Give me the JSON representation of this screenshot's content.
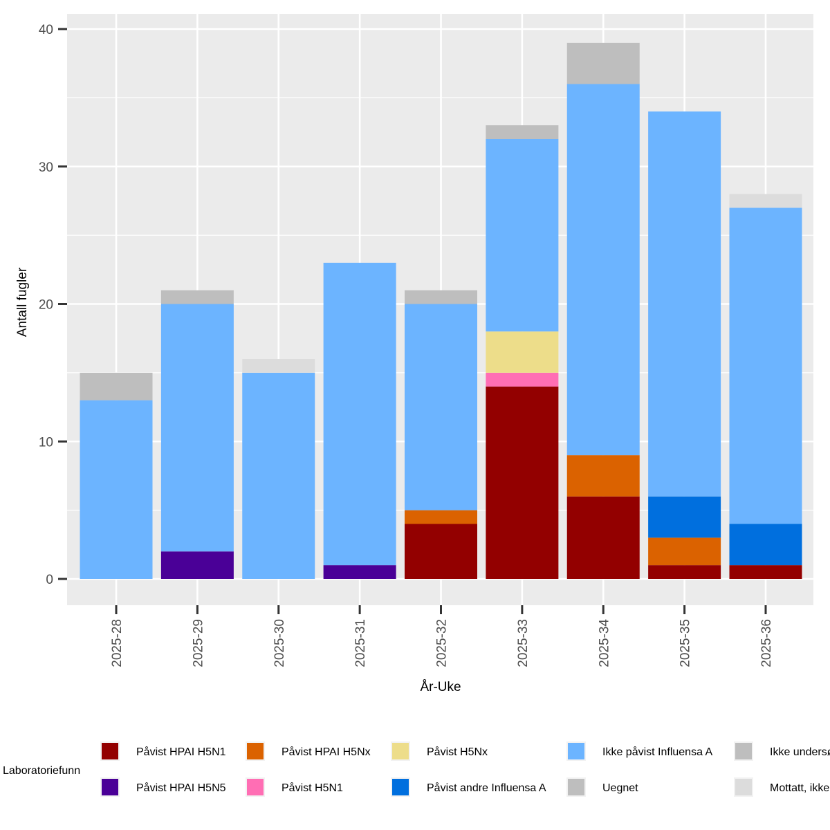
{
  "chart_data": {
    "type": "bar",
    "stacked": true,
    "title": "",
    "xlabel": "År-Uke",
    "ylabel": "Antall fugler",
    "ylim": [
      -2,
      40
    ],
    "yticks": [
      0,
      10,
      20,
      30,
      40
    ],
    "grid": true,
    "categories": [
      "2025-28",
      "2025-29",
      "2025-30",
      "2025-31",
      "2025-32",
      "2025-33",
      "2025-34",
      "2025-35",
      "2025-36"
    ],
    "series": [
      {
        "name": "Påvist HPAI H5N1",
        "color": "#930000",
        "values": [
          0,
          0,
          0,
          0,
          4,
          14,
          6,
          1,
          1
        ]
      },
      {
        "name": "Påvist HPAI H5N5",
        "color": "#4A0097",
        "values": [
          0,
          2,
          0,
          1,
          0,
          0,
          0,
          0,
          0
        ]
      },
      {
        "name": "Påvist HPAI H5Nx",
        "color": "#DB6200",
        "values": [
          0,
          0,
          0,
          0,
          1,
          0,
          3,
          2,
          0
        ]
      },
      {
        "name": "Påvist H5N1",
        "color": "#FF6EB4",
        "values": [
          0,
          0,
          0,
          0,
          0,
          1,
          0,
          0,
          0
        ]
      },
      {
        "name": "Påvist H5Nx",
        "color": "#EDDD8A",
        "values": [
          0,
          0,
          0,
          0,
          0,
          3,
          0,
          0,
          0
        ]
      },
      {
        "name": "Påvist andre Influensa A",
        "color": "#006FDE",
        "values": [
          0,
          0,
          0,
          0,
          0,
          0,
          0,
          3,
          3
        ]
      },
      {
        "name": "Ikke påvist Influensa A",
        "color": "#6CB4FF",
        "values": [
          13,
          18,
          15,
          22,
          15,
          14,
          27,
          28,
          23
        ]
      },
      {
        "name": "Uegnet",
        "color": "#BEBEBE",
        "values": [
          0,
          0,
          0,
          0,
          0,
          0,
          0,
          0,
          0
        ]
      },
      {
        "name": "Ikke undersøkt",
        "color": "#BEBEBE",
        "values": [
          2,
          1,
          0,
          0,
          1,
          1,
          3,
          0,
          0
        ]
      },
      {
        "name": "Mottatt, ikke undersøkt",
        "color": "#DCDCDC",
        "values": [
          0,
          0,
          1,
          0,
          0,
          0,
          0,
          0,
          1
        ]
      }
    ],
    "legend": {
      "title": "Laboratoriefunn",
      "placement": "bottom",
      "entries": [
        {
          "label": "Påvist HPAI H5N1",
          "series": 0
        },
        {
          "label": "Påvist HPAI H5N5",
          "series": 1
        },
        {
          "label": "Påvist HPAI H5Nx",
          "series": 2
        },
        {
          "label": "Påvist H5N1",
          "series": 3
        },
        {
          "label": "Påvist H5Nx",
          "series": 4
        },
        {
          "label": "Påvist andre Influensa A",
          "series": 5
        },
        {
          "label": "Ikke påvist Influensa A",
          "series": 6
        },
        {
          "label": "Uegnet",
          "series": 7
        },
        {
          "label": "Ikke undersøkt",
          "series": 8
        },
        {
          "label": "Mottatt, ikke undersøkt",
          "series": 9
        }
      ]
    }
  }
}
